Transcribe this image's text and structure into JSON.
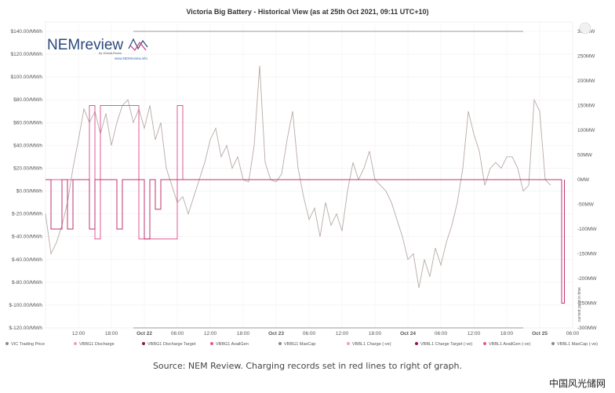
{
  "chart_data": {
    "type": "line",
    "title": "Victoria Big Battery - Historical View (as at 25th Oct 2021, 09:11 UTC+10)",
    "y_left": {
      "ticks": [
        "$140.00/MWh",
        "$120.00/MWh",
        "$100.00/MWh",
        "$80.00/MWh",
        "$60.00/MWh",
        "$40.00/MWh",
        "$20.00/MWh",
        "$0.00/MWh",
        "$-20.00/MWh",
        "$-40.00/MWh",
        "$-60.00/MWh",
        "$-80.00/MWh",
        "$-100.00/MWh",
        "$-120.00/MWh"
      ],
      "range": [
        -120,
        140
      ]
    },
    "y_right": {
      "ticks": [
        "300MW",
        "250MW",
        "200MW",
        "150MW",
        "100MW",
        "50MW",
        "0MW",
        "-50MW",
        "-100MW",
        "-150MW",
        "-200MW",
        "-250MW",
        "-300MW"
      ],
      "range": [
        -300,
        300
      ]
    },
    "x_ticks": [
      "12:00",
      "18:00",
      "Oct 22",
      "06:00",
      "12:00",
      "18:00",
      "Oct 23",
      "06:00",
      "12:00",
      "18:00",
      "Oct 24",
      "06:00",
      "12:00",
      "18:00",
      "Oct 25",
      "06:00"
    ],
    "x_range_hours": [
      0,
      96
    ],
    "vertical_note": "current point in time",
    "legend": [
      "VIC Trading Price",
      "VBBG1 Discharge",
      "VBBG1 Discharge Target",
      "VBBG1 AvailGen",
      "VBBG1 MaxCap",
      "VBBL1 Charge (-ve)",
      "VBBL1 Charge Target (-ve)",
      "VBBL1 AvailGen (-ve)",
      "VBBL1 MaxCap (-ve)"
    ],
    "legend_colors": [
      "#8a8a8a",
      "#f0a0bf",
      "#8a1a55",
      "#e05a95",
      "#8a8a8a",
      "#f0a0bf",
      "#8a1a55",
      "#e05a95",
      "#8a8a8a"
    ],
    "series": [
      {
        "name": "VIC Trading Price",
        "color": "#b8aaa6",
        "points": [
          [
            0,
            -20
          ],
          [
            1,
            -55
          ],
          [
            2,
            -45
          ],
          [
            3,
            -30
          ],
          [
            4,
            -10
          ],
          [
            5,
            20
          ],
          [
            6,
            45
          ],
          [
            7,
            72
          ],
          [
            8,
            60
          ],
          [
            9,
            70
          ],
          [
            10,
            50
          ],
          [
            11,
            68
          ],
          [
            12,
            40
          ],
          [
            13,
            60
          ],
          [
            14,
            75
          ],
          [
            15,
            80
          ],
          [
            16,
            60
          ],
          [
            17,
            72
          ],
          [
            18,
            55
          ],
          [
            19,
            75
          ],
          [
            20,
            45
          ],
          [
            21,
            60
          ],
          [
            22,
            20
          ],
          [
            23,
            5
          ],
          [
            24,
            -10
          ],
          [
            25,
            -5
          ],
          [
            26,
            -20
          ],
          [
            27,
            -5
          ],
          [
            28,
            10
          ],
          [
            29,
            25
          ],
          [
            30,
            45
          ],
          [
            31,
            55
          ],
          [
            32,
            30
          ],
          [
            33,
            40
          ],
          [
            34,
            20
          ],
          [
            35,
            30
          ],
          [
            36,
            10
          ],
          [
            37,
            8
          ],
          [
            38,
            40
          ],
          [
            39,
            110
          ],
          [
            40,
            25
          ],
          [
            41,
            10
          ],
          [
            42,
            8
          ],
          [
            43,
            15
          ],
          [
            44,
            45
          ],
          [
            45,
            70
          ],
          [
            46,
            20
          ],
          [
            47,
            -5
          ],
          [
            48,
            -25
          ],
          [
            49,
            -15
          ],
          [
            50,
            -40
          ],
          [
            51,
            -10
          ],
          [
            52,
            -30
          ],
          [
            53,
            -20
          ],
          [
            54,
            -35
          ],
          [
            55,
            0
          ],
          [
            56,
            25
          ],
          [
            57,
            10
          ],
          [
            58,
            20
          ],
          [
            59,
            35
          ],
          [
            60,
            10
          ],
          [
            61,
            5
          ],
          [
            62,
            0
          ],
          [
            63,
            -10
          ],
          [
            64,
            -25
          ],
          [
            65,
            -40
          ],
          [
            66,
            -60
          ],
          [
            67,
            -55
          ],
          [
            68,
            -85
          ],
          [
            69,
            -60
          ],
          [
            70,
            -75
          ],
          [
            71,
            -50
          ],
          [
            72,
            -65
          ],
          [
            73,
            -45
          ],
          [
            74,
            -30
          ],
          [
            75,
            -10
          ],
          [
            76,
            20
          ],
          [
            77,
            70
          ],
          [
            78,
            50
          ],
          [
            79,
            35
          ],
          [
            80,
            5
          ],
          [
            81,
            20
          ],
          [
            82,
            25
          ],
          [
            83,
            20
          ],
          [
            84,
            30
          ],
          [
            85,
            30
          ],
          [
            86,
            20
          ],
          [
            87,
            0
          ],
          [
            88,
            5
          ],
          [
            89,
            80
          ],
          [
            90,
            70
          ],
          [
            91,
            10
          ],
          [
            92,
            5
          ]
        ]
      },
      {
        "name": "VBBG1 MaxCap",
        "color": "#9a9a9a",
        "points": [
          [
            16,
            300
          ],
          [
            87,
            300
          ]
        ]
      },
      {
        "name": "VBBL1 MaxCap (-ve)",
        "color": "#9a9a9a",
        "points": [
          [
            16,
            -300
          ],
          [
            87,
            -300
          ]
        ]
      },
      {
        "name": "VBBG1 AvailGen",
        "color": "#e05a95",
        "points": [
          [
            0,
            0
          ],
          [
            8,
            0
          ],
          [
            8,
            150
          ],
          [
            9,
            150
          ],
          [
            9,
            -120
          ],
          [
            10,
            -120
          ],
          [
            10,
            150
          ],
          [
            17,
            150
          ],
          [
            17,
            -120
          ],
          [
            24,
            -120
          ],
          [
            24,
            150
          ],
          [
            25,
            150
          ],
          [
            25,
            0
          ],
          [
            90,
            0
          ]
        ]
      },
      {
        "name": "VBBL1 Charge (-ve)",
        "color": "#c2336f",
        "points": [
          [
            0,
            0
          ],
          [
            1,
            0
          ],
          [
            1,
            -100
          ],
          [
            3,
            -100
          ],
          [
            3,
            0
          ],
          [
            4,
            0
          ],
          [
            4,
            -100
          ],
          [
            5,
            -100
          ],
          [
            5,
            0
          ],
          [
            8,
            0
          ],
          [
            8,
            -100
          ],
          [
            9,
            -100
          ],
          [
            9,
            0
          ],
          [
            13,
            0
          ],
          [
            13,
            -100
          ],
          [
            14,
            -100
          ],
          [
            14,
            0
          ],
          [
            18,
            0
          ],
          [
            18,
            -120
          ],
          [
            19,
            -120
          ],
          [
            19,
            0
          ],
          [
            20,
            0
          ],
          [
            20,
            -60
          ],
          [
            21,
            -60
          ],
          [
            21,
            0
          ],
          [
            94,
            0
          ],
          [
            94,
            -250
          ],
          [
            94.5,
            -250
          ],
          [
            94.5,
            0
          ]
        ]
      }
    ]
  },
  "caption": "Source: NEM Review. Charging records set in red lines to right of graph.",
  "logo": {
    "name": "NEMreview",
    "byline": "by Global-Roam",
    "url": "www.NEMreview.info"
  },
  "watermark": "中国风光储网"
}
